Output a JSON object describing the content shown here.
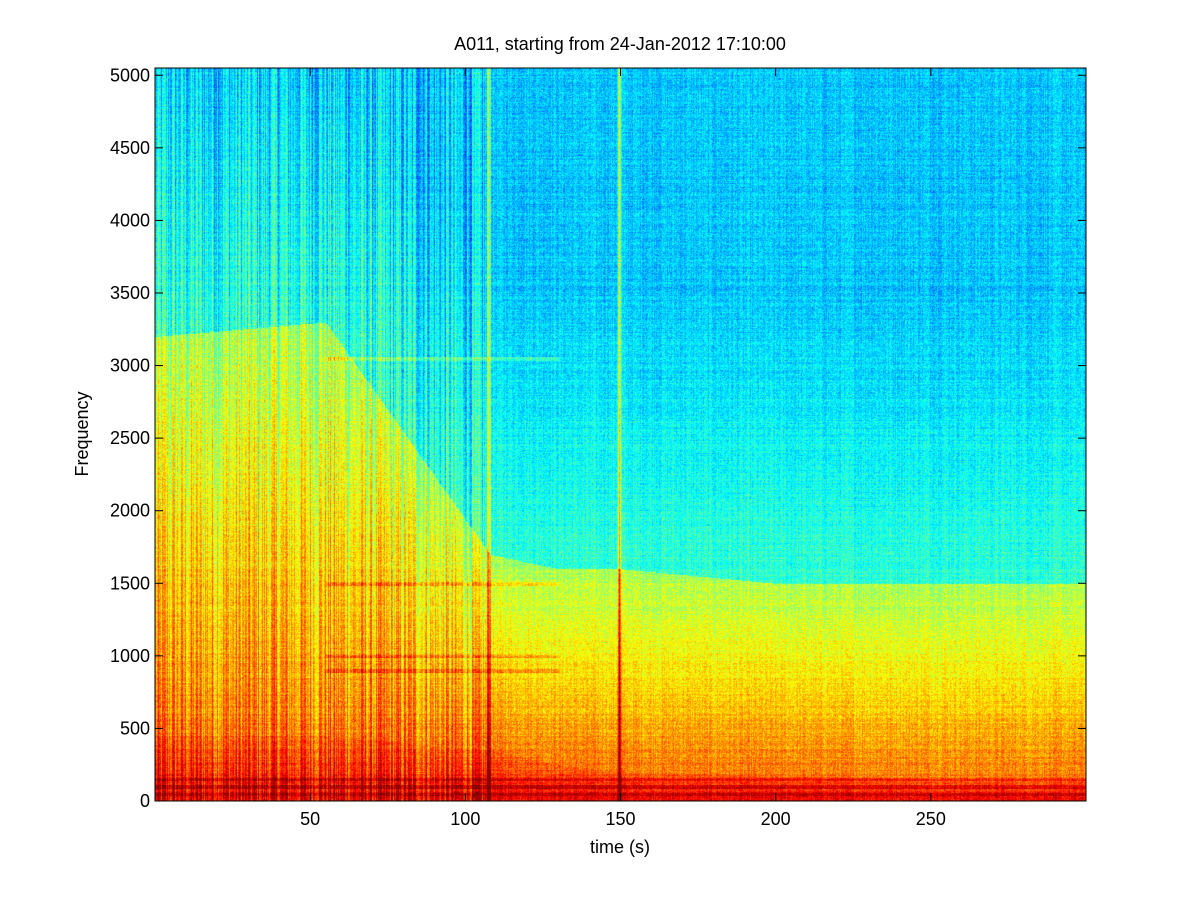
{
  "chart_data": {
    "type": "heatmap",
    "title": "A011, starting from 24-Jan-2012 17:10:00",
    "xlabel": "time (s)",
    "ylabel": "Frequency",
    "xlim": [
      0,
      300
    ],
    "ylim": [
      0,
      5050
    ],
    "xticks": [
      50,
      100,
      150,
      200,
      250
    ],
    "yticks": [
      0,
      500,
      1000,
      1500,
      2000,
      2500,
      3000,
      3500,
      4000,
      4500,
      5000
    ],
    "colormap": "jet",
    "grid": false,
    "intensity_profile": {
      "time_s": [
        0,
        55,
        108,
        130,
        150,
        200,
        250,
        300
      ],
      "freq_hz_cutoff_high_energy": [
        450,
        450,
        350,
        250,
        200,
        180,
        150,
        150
      ],
      "freq_hz_cutoff_mid_energy": [
        3200,
        3300,
        1700,
        1600,
        1600,
        1500,
        1500,
        1500
      ]
    },
    "broadband_events_s": [
      107.5,
      149.5
    ],
    "tonal_bands_hz": [
      50,
      100,
      150,
      900,
      1000,
      1500,
      3050
    ]
  },
  "colors": {
    "low": "#33e8d8",
    "mid": "#e8ff20",
    "high": "#ff2a00"
  }
}
